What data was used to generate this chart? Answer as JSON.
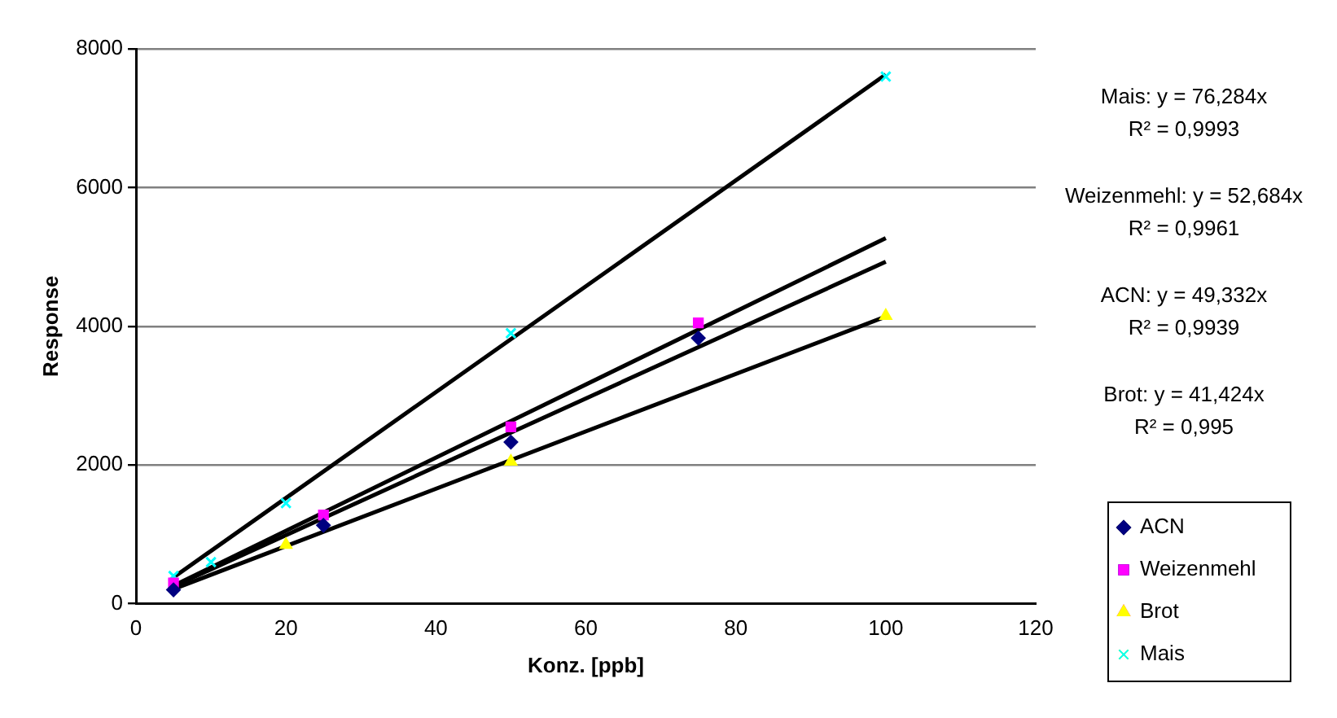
{
  "chart_data": {
    "type": "scatter",
    "xlabel": "Konz. [ppb]",
    "ylabel": "Response",
    "xlim": [
      0,
      120
    ],
    "xticks": [
      0,
      20,
      40,
      60,
      80,
      100,
      120
    ],
    "ylim": [
      0,
      8000
    ],
    "yticks": [
      0,
      2000,
      4000,
      6000,
      8000
    ],
    "grid": "y",
    "legend": "right",
    "annotations": [
      "Mais: y = 76,284x",
      "R² = 0,9993",
      "Weizenmehl: y = 52,684x",
      "R² = 0,9961",
      "ACN: y = 49,332x",
      "R² = 0,9939",
      "Brot: y = 41,424x",
      "R² = 0,995"
    ],
    "series": [
      {
        "name": "ACN",
        "color": "#000080",
        "marker": "diamond",
        "x": [
          5,
          25,
          50,
          75
        ],
        "values": [
          200,
          1130,
          2330,
          3830
        ]
      },
      {
        "name": "Weizenmehl",
        "color": "#ff00ff",
        "marker": "square",
        "x": [
          5,
          25,
          50,
          75
        ],
        "values": [
          300,
          1280,
          2550,
          4050
        ]
      },
      {
        "name": "Brot",
        "color": "#ffff00",
        "marker": "triangle",
        "x": [
          20,
          50,
          100
        ],
        "values": [
          850,
          2050,
          4150
        ]
      },
      {
        "name": "Mais",
        "color": "#00ffff",
        "marker": "cross",
        "x": [
          5,
          10,
          20,
          50,
          100
        ],
        "values": [
          400,
          600,
          1450,
          3900,
          7600
        ]
      },
      {
        "type": "line",
        "color": "#000000",
        "marker": "none",
        "x": [
          5,
          100
        ],
        "values": [
          380,
          7630
        ]
      },
      {
        "type": "line",
        "color": "#000000",
        "marker": "none",
        "x": [
          5,
          100
        ],
        "values": [
          260,
          5270
        ]
      },
      {
        "type": "line",
        "color": "#000000",
        "marker": "none",
        "x": [
          5,
          100
        ],
        "values": [
          250,
          4930
        ]
      },
      {
        "type": "line",
        "color": "#000000",
        "marker": "none",
        "x": [
          5,
          100
        ],
        "values": [
          210,
          4140
        ]
      }
    ]
  }
}
